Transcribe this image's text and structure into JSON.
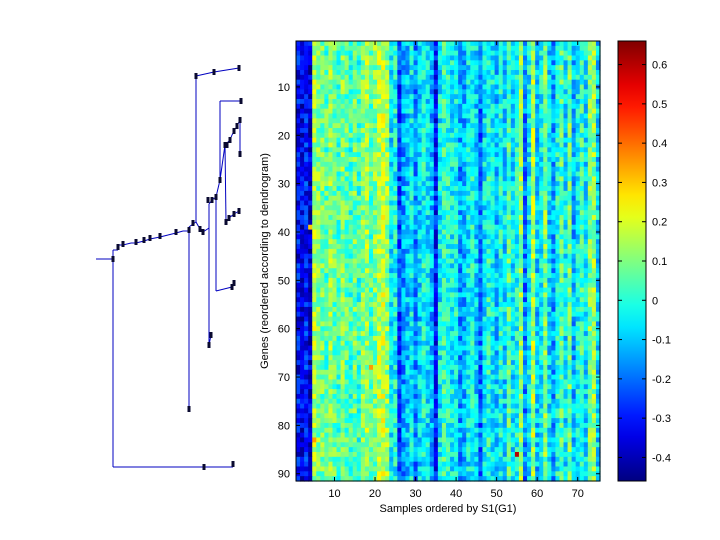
{
  "chart_data": [
    {
      "type": "line",
      "subtype": "dendrogram",
      "orientation": "left",
      "color": "#0000c0",
      "node_color": "#0a0a30",
      "note": "Hierarchical clustering dendrogram of 91 genes; leaf order matches heatmap rows"
    },
    {
      "type": "heatmap",
      "xlabel": "Samples ordered by S1(G1)",
      "ylabel": "Genes (reordered according to dendrogram)",
      "x_range": [
        1,
        75
      ],
      "y_range": [
        1,
        91
      ],
      "x_ticks": [
        "10",
        "20",
        "30",
        "40",
        "50",
        "60",
        "70"
      ],
      "y_ticks": [
        "10",
        "20",
        "30",
        "40",
        "50",
        "60",
        "70",
        "80",
        "90"
      ],
      "n_samples": 75,
      "n_genes": 91,
      "column_mean_profile": [
        -0.32,
        -0.34,
        -0.3,
        -0.36,
        0.15,
        0.1,
        0.08,
        0.05,
        0.12,
        0.07,
        0.04,
        0.1,
        0.06,
        0.03,
        0.08,
        0.02,
        0.1,
        0.14,
        0.05,
        0.1,
        0.15,
        0.17,
        0.12,
        -0.06,
        -0.02,
        -0.25,
        -0.15,
        -0.1,
        -0.05,
        -0.18,
        -0.08,
        -0.02,
        -0.06,
        -0.12,
        -0.3,
        -0.05,
        0.02,
        0.0,
        -0.04,
        -0.02,
        -0.15,
        -0.12,
        -0.05,
        -0.02,
        -0.08,
        -0.2,
        -0.06,
        0.0,
        -0.04,
        -0.1,
        -0.02,
        -0.08,
        0.05,
        -0.06,
        -0.02,
        0.12,
        -0.18,
        -0.05,
        0.15,
        -0.1,
        -0.04,
        0.1,
        -0.08,
        -0.14,
        -0.02,
        0.05,
        -0.06,
        0.08,
        -0.12,
        -0.04,
        0.02,
        -0.06,
        0.1,
        0.12,
        -0.08
      ],
      "hotspots": [
        {
          "sample": 55,
          "gene": 86,
          "value": 0.6
        },
        {
          "sample": 19,
          "gene": 68,
          "value": 0.35
        },
        {
          "sample": 5,
          "gene": 83,
          "value": 0.35
        },
        {
          "sample": 4,
          "gene": 39,
          "value": 0.3
        }
      ]
    },
    {
      "type": "colorbar",
      "colormap": "jet",
      "range": [
        -0.46,
        0.66
      ],
      "ticks": [
        {
          "value": 0.6,
          "label": "0.6"
        },
        {
          "value": 0.5,
          "label": "0.5"
        },
        {
          "value": 0.4,
          "label": "0.4"
        },
        {
          "value": 0.3,
          "label": "0.3"
        },
        {
          "value": 0.2,
          "label": "0.2"
        },
        {
          "value": 0.1,
          "label": "0.1"
        },
        {
          "value": 0,
          "label": "0"
        },
        {
          "value": -0.1,
          "label": "-0.1"
        },
        {
          "value": -0.2,
          "label": "-0.2"
        },
        {
          "value": -0.3,
          "label": "-0.3"
        },
        {
          "value": -0.4,
          "label": "-0.4"
        }
      ]
    }
  ]
}
